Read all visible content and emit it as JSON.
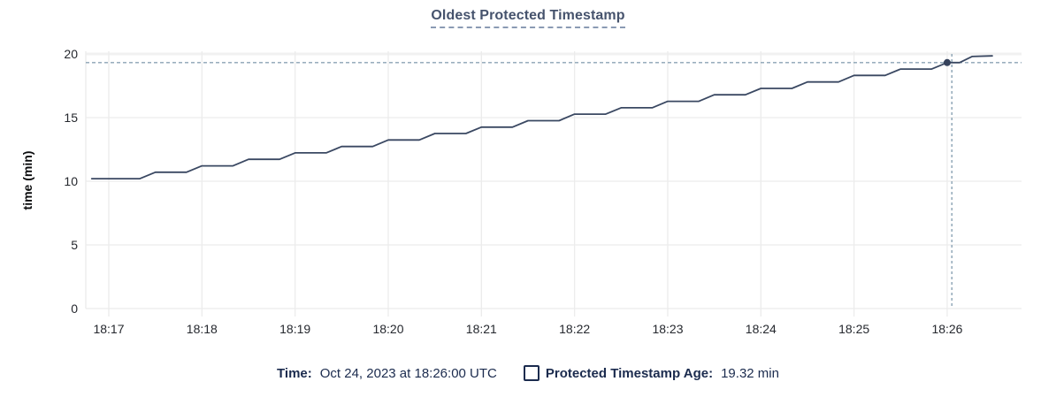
{
  "chart_data": {
    "type": "line",
    "title": "Oldest Protected Timestamp",
    "ylabel": "time (min)",
    "xlabel": "",
    "x_tick_labels": [
      "18:17",
      "18:18",
      "18:19",
      "18:20",
      "18:21",
      "18:22",
      "18:23",
      "18:24",
      "18:25",
      "18:26"
    ],
    "y_ticks": [
      0,
      5,
      10,
      15,
      20
    ],
    "ylim": [
      0,
      20
    ],
    "grid": true,
    "legend_position": "bottom",
    "series": [
      {
        "name": "Protected Timestamp Age",
        "unit": "min",
        "points_t_seconds_value_min": [
          [
            -11,
            10.2
          ],
          [
            20,
            10.2
          ],
          [
            30,
            10.71
          ],
          [
            50,
            10.71
          ],
          [
            60,
            11.21
          ],
          [
            80,
            11.21
          ],
          [
            90,
            11.72
          ],
          [
            110,
            11.72
          ],
          [
            120,
            12.23
          ],
          [
            140,
            12.23
          ],
          [
            150,
            12.73
          ],
          [
            170,
            12.73
          ],
          [
            180,
            13.24
          ],
          [
            200,
            13.24
          ],
          [
            210,
            13.75
          ],
          [
            230,
            13.75
          ],
          [
            240,
            14.25
          ],
          [
            260,
            14.25
          ],
          [
            270,
            14.76
          ],
          [
            290,
            14.76
          ],
          [
            300,
            15.27
          ],
          [
            320,
            15.27
          ],
          [
            330,
            15.77
          ],
          [
            350,
            15.77
          ],
          [
            360,
            16.28
          ],
          [
            380,
            16.28
          ],
          [
            390,
            16.79
          ],
          [
            410,
            16.79
          ],
          [
            420,
            17.29
          ],
          [
            440,
            17.29
          ],
          [
            450,
            17.8
          ],
          [
            470,
            17.8
          ],
          [
            480,
            18.31
          ],
          [
            500,
            18.31
          ],
          [
            510,
            18.81
          ],
          [
            530,
            18.81
          ],
          [
            540,
            19.32
          ],
          [
            548,
            19.32
          ],
          [
            556,
            19.8
          ],
          [
            569,
            19.85
          ]
        ]
      }
    ],
    "highlight": {
      "point_t_seconds": 540,
      "crosshair_t_seconds": 543,
      "value": 19.32,
      "dashed_value_line": 19.32,
      "hover_time": "18:26:00"
    }
  },
  "tooltip": {
    "time_label": "Time:",
    "time_value": "Oct 24, 2023 at 18:26:00 UTC",
    "series_label": "Protected Timestamp Age:",
    "series_value": "19.32 min",
    "checkbox_icon": "series-checkbox"
  },
  "colors": {
    "background": "#ffffff",
    "title": "#46536d",
    "line": "#3a4862",
    "dot": "#35425c",
    "grid": "#ececec",
    "grid_major_top": "#f1f1f1",
    "tick_text": "#25282e",
    "legend_text": "#1b2b4e",
    "crosshair": "#8ba3b4"
  }
}
